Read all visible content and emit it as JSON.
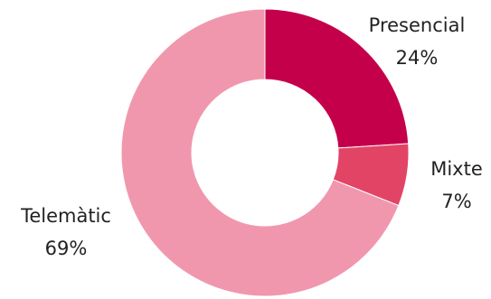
{
  "chart_data": {
    "type": "pie",
    "donut": true,
    "title": "",
    "legend": "none",
    "slices": [
      {
        "label": "Presencial",
        "value": 24,
        "value_label": "24%",
        "color": "#C4004B"
      },
      {
        "label": "Mixte",
        "value": 7,
        "value_label": "7%",
        "color": "#E24466"
      },
      {
        "label": "Telemàtic",
        "value": 69,
        "value_label": "69%",
        "color": "#F097AE"
      }
    ]
  }
}
